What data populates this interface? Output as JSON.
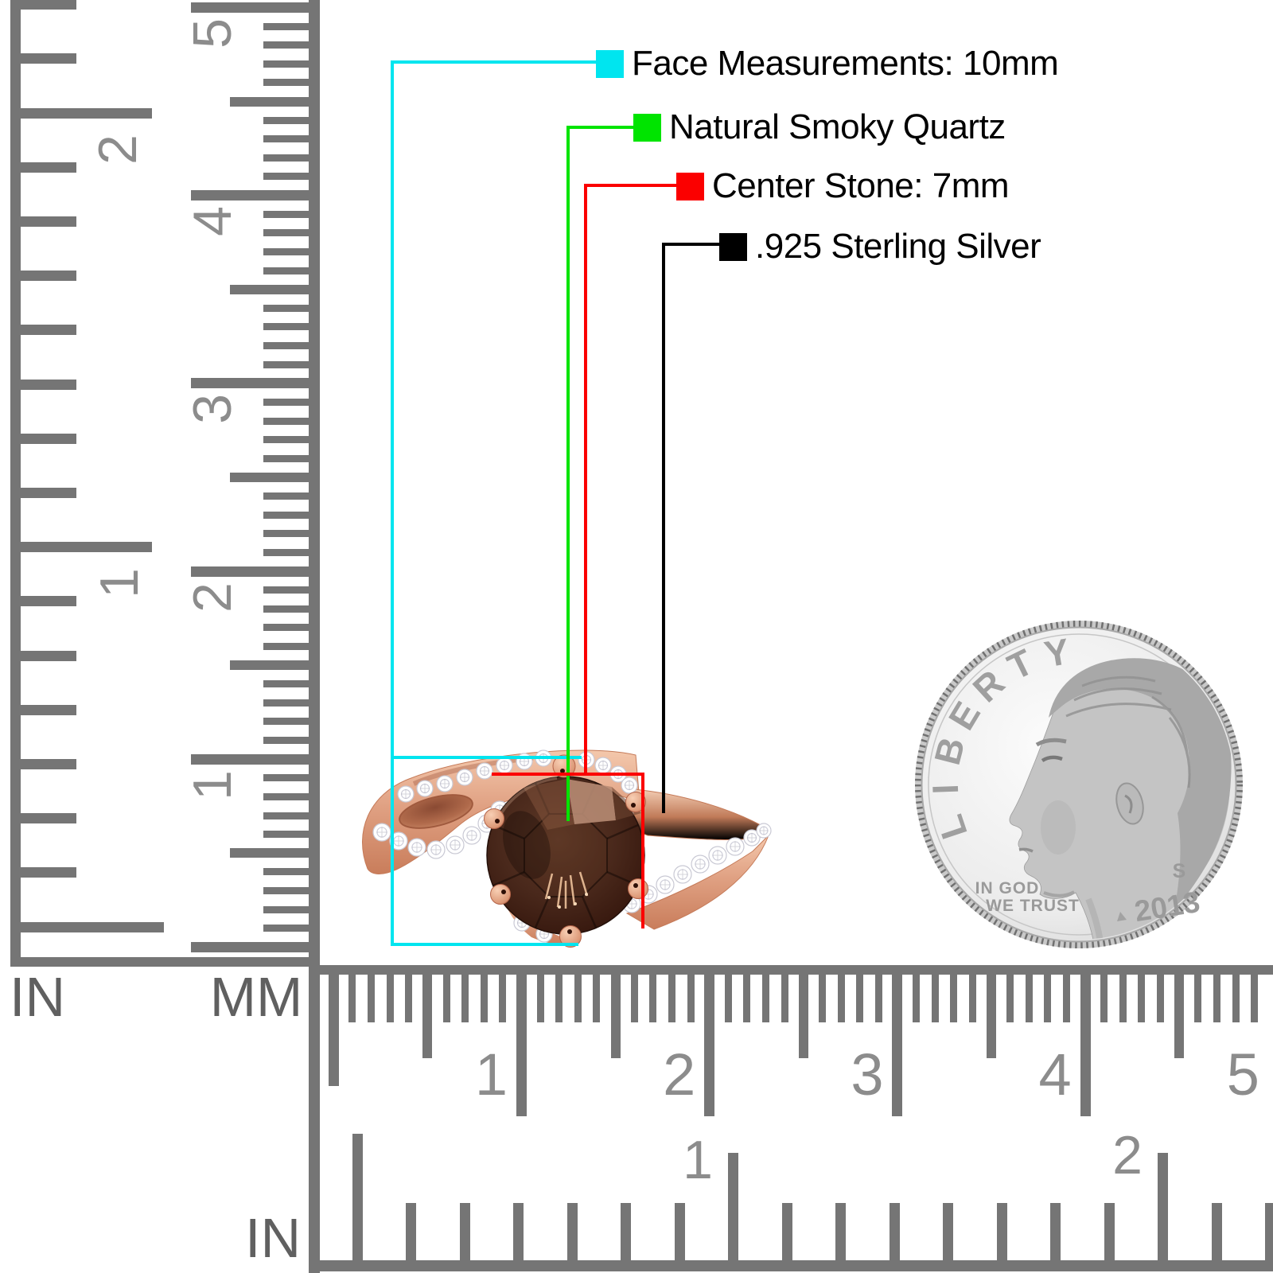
{
  "annotations": [
    {
      "label": "Face Measurements: 10mm",
      "color": "#00e5ef"
    },
    {
      "label": "Natural Smoky Quartz",
      "color": "#00e400"
    },
    {
      "label": "Center Stone: 7mm",
      "color": "#fb0000"
    },
    {
      "label": ".925 Sterling Silver",
      "color": "#000000"
    }
  ],
  "rulers": {
    "left_inch": {
      "unit": "IN",
      "numbers": [
        "2",
        "1"
      ]
    },
    "left_mm": {
      "unit": "MM",
      "numbers": [
        "5",
        "4",
        "3",
        "2",
        "1"
      ]
    },
    "bottom_mm": {
      "numbers": [
        "1",
        "2",
        "3",
        "4",
        "5"
      ]
    },
    "bottom_inch": {
      "unit": "IN",
      "numbers": [
        "1",
        "2"
      ]
    },
    "tick_color": "#757575",
    "number_color": "#8c8c8c"
  },
  "coin": {
    "legend": "LIBERTY",
    "motto_line1": "IN GOD",
    "motto_line2": "WE TRUST",
    "mint_mark": "S",
    "year": "2013",
    "silver_color": "#e9e9e9"
  },
  "ring": {
    "band_color": "#e2a081",
    "stone_color": "#3f2318",
    "accent_color": "#ffffff"
  }
}
